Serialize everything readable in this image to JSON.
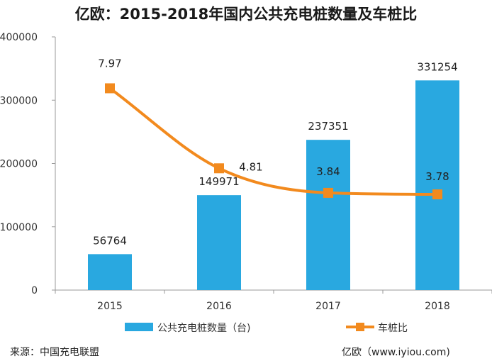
{
  "title": "亿欧：2015-2018年国内公共充电桩数量及车桩比",
  "footer": {
    "source": "来源：中国充电联盟",
    "brand": "亿欧（www.iyiou.com)"
  },
  "colors": {
    "bar": "#29a8e0",
    "line": "#f28a1e",
    "axis": "#9a9a9a"
  },
  "chart_data": {
    "type": "bar",
    "title": "亿欧：2015-2018年国内公共充电桩数量及车桩比",
    "categories": [
      "2015",
      "2016",
      "2017",
      "2018"
    ],
    "series": [
      {
        "name": "公共充电桩数量（台)",
        "type": "bar",
        "axis": "left",
        "values": [
          56764,
          149971,
          237351,
          331254
        ]
      },
      {
        "name": "车桩比",
        "type": "line",
        "axis": "right",
        "values": [
          7.97,
          4.81,
          3.84,
          3.78
        ]
      }
    ],
    "y_ticks": [
      "0",
      "100000",
      "200000",
      "300000",
      "400000"
    ],
    "ylim": [
      0,
      400000
    ],
    "y2lim": [
      0,
      10
    ],
    "legend_position": "bottom"
  }
}
